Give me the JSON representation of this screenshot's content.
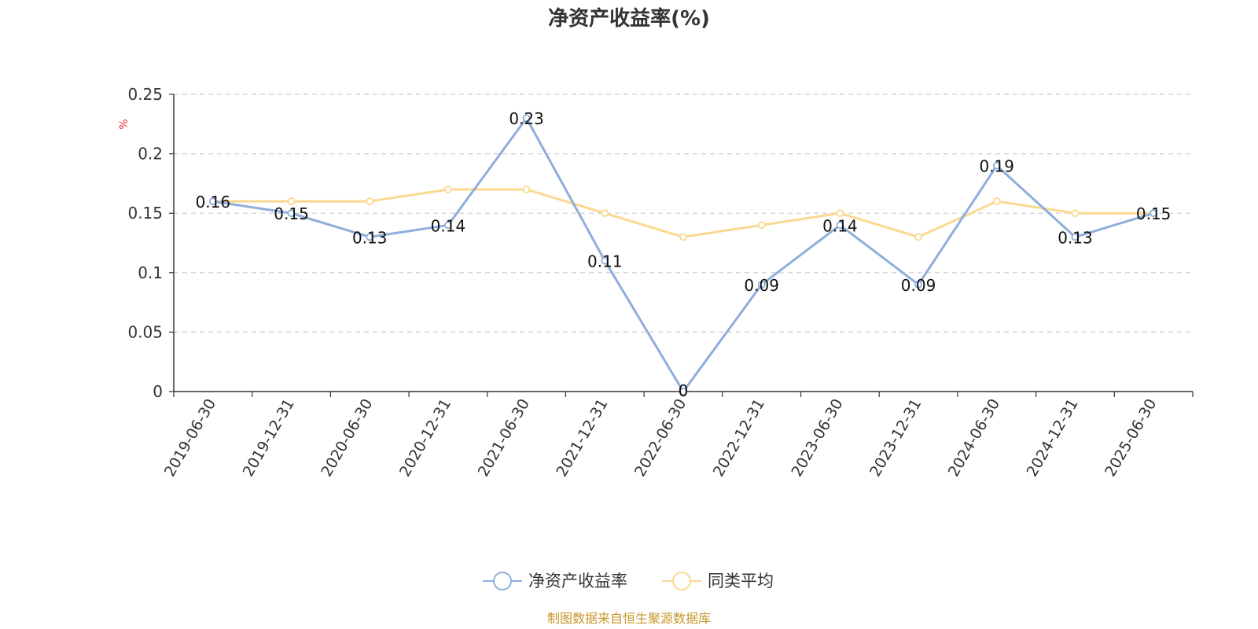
{
  "chart_data": {
    "type": "line",
    "title": "净资产收益率(%)",
    "ylabel": "%",
    "xlabel": "",
    "ylim": [
      0,
      0.25
    ],
    "y_ticks": [
      "0",
      "0.05",
      "0.1",
      "0.15",
      "0.2",
      "0.25"
    ],
    "categories": [
      "2019-06-30",
      "2019-12-31",
      "2020-06-30",
      "2020-12-31",
      "2021-06-30",
      "2021-12-31",
      "2022-06-30",
      "2022-12-31",
      "2023-06-30",
      "2023-12-31",
      "2024-06-30",
      "2024-12-31",
      "2025-06-30"
    ],
    "series": [
      {
        "name": "净资产收益率",
        "color": "#8eaedb",
        "values": [
          0.16,
          0.15,
          0.13,
          0.14,
          0.23,
          0.11,
          0,
          0.09,
          0.14,
          0.09,
          0.19,
          0.13,
          0.15
        ],
        "labels": [
          "0.16",
          "0.15",
          "0.13",
          "0.14",
          "0.23",
          "0.11",
          "0",
          "0.09",
          "0.14",
          "0.09",
          "0.19",
          "0.13",
          "0.15"
        ]
      },
      {
        "name": "同类平均",
        "color": "#fad88f",
        "values": [
          0.16,
          0.16,
          0.16,
          0.17,
          0.17,
          0.15,
          0.13,
          0.14,
          0.15,
          0.13,
          0.16,
          0.15,
          0.15
        ]
      }
    ],
    "grid": true,
    "legend_position": "bottom-center"
  },
  "colors": {
    "unit_label": "#e03030",
    "source": "#c8962a",
    "grid": "#cccccc",
    "axis": "#333333"
  },
  "source_note": "制图数据来自恒生聚源数据库"
}
